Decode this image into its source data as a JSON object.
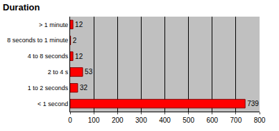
{
  "chart_data": {
    "type": "bar",
    "title": "Duration",
    "orientation": "horizontal",
    "categories": [
      "< 1 second",
      "1 to 2 seconds",
      "2 to 4 s",
      "4 to 8 seconds",
      "8 seconds to 1 minute",
      "> 1 minute"
    ],
    "values": [
      739,
      32,
      53,
      12,
      2,
      12
    ],
    "color": "#ff0000",
    "xlim": [
      0,
      800
    ],
    "xticks": [
      0,
      100,
      200,
      300,
      400,
      500,
      600,
      700,
      800
    ],
    "grid": true,
    "data_labels": true
  }
}
